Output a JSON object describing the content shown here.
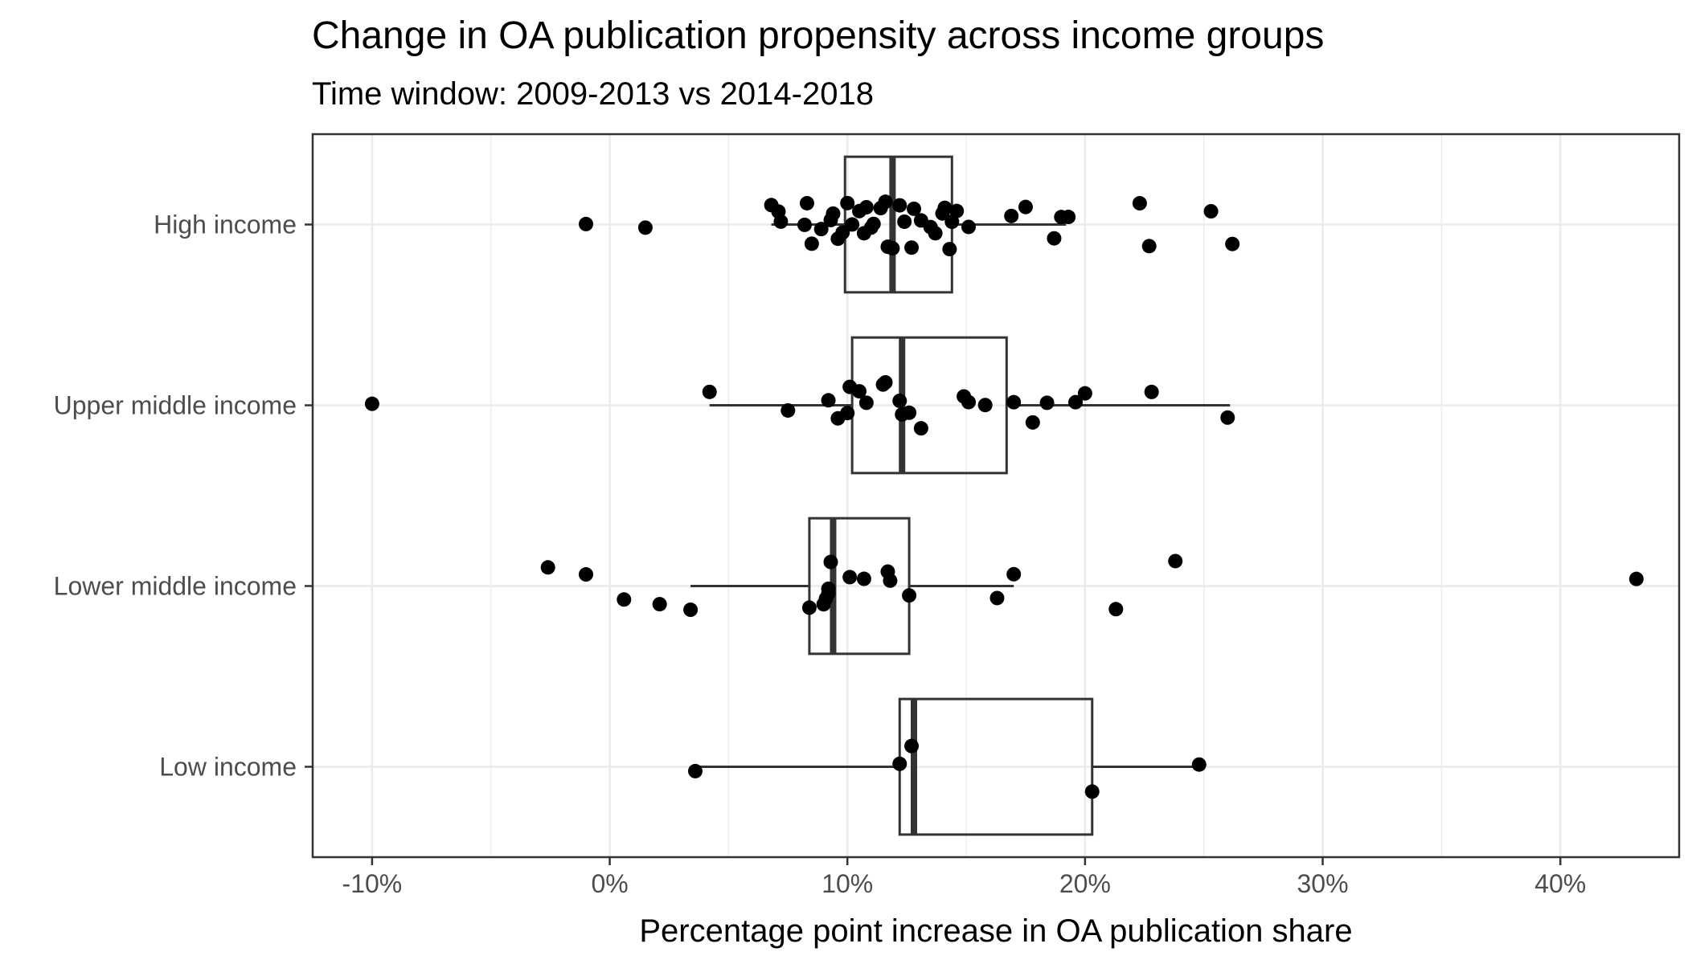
{
  "chart_data": {
    "type": "boxplot",
    "title": "Change in OA publication propensity across income groups",
    "subtitle": "Time window: 2009-2013 vs 2014-2018",
    "xlabel": "Percentage point increase in OA publication share",
    "ylabel": "",
    "xlim": [
      -12.5,
      45.0
    ],
    "x_ticks": [
      -10,
      0,
      10,
      20,
      30,
      40
    ],
    "x_tick_labels": [
      "-10%",
      "0%",
      "10%",
      "20%",
      "30%",
      "40%"
    ],
    "categories": [
      "High income",
      "Upper middle income",
      "Lower middle income",
      "Low income"
    ],
    "grid": true,
    "legend": "none",
    "colors": {
      "points": "#000000",
      "box": "#333333",
      "grid": "#ebebeb",
      "panel_border": "#333333"
    },
    "boxes": [
      {
        "category": "High income",
        "whisker_low": 6.8,
        "q1": 9.9,
        "median": 11.9,
        "q3": 14.4,
        "whisker_high": 19.2
      },
      {
        "category": "Upper middle income",
        "whisker_low": 4.2,
        "q1": 10.2,
        "median": 12.3,
        "q3": 16.7,
        "whisker_high": 26.1
      },
      {
        "category": "Lower middle income",
        "whisker_low": 3.4,
        "q1": 8.4,
        "median": 9.4,
        "q3": 12.6,
        "whisker_high": 17.0
      },
      {
        "category": "Low income",
        "whisker_low": 3.6,
        "q1": 12.2,
        "median": 12.8,
        "q3": 20.3,
        "whisker_high": 24.9
      }
    ],
    "points": [
      {
        "category": "High income",
        "values": [
          -1.0,
          1.5,
          6.8,
          7.1,
          7.2,
          8.2,
          8.3,
          8.5,
          8.9,
          9.3,
          9.4,
          9.6,
          9.8,
          10.0,
          10.2,
          10.5,
          10.7,
          10.8,
          11.0,
          11.1,
          11.4,
          11.6,
          11.7,
          11.9,
          12.2,
          12.4,
          12.7,
          12.8,
          13.1,
          13.5,
          13.7,
          14.0,
          14.1,
          14.3,
          14.4,
          14.6,
          15.1,
          16.9,
          17.5,
          18.7,
          19.0,
          19.3,
          22.3,
          22.7,
          25.3,
          26.2
        ]
      },
      {
        "category": "Upper middle income",
        "values": [
          -10.0,
          4.2,
          7.5,
          9.2,
          9.6,
          10.0,
          10.1,
          10.5,
          10.8,
          11.5,
          11.6,
          12.2,
          12.3,
          12.6,
          13.1,
          14.9,
          15.1,
          15.8,
          17.0,
          17.8,
          18.4,
          19.6,
          20.0,
          22.8,
          26.0
        ]
      },
      {
        "category": "Lower middle income",
        "values": [
          -2.6,
          -1.0,
          0.6,
          2.1,
          3.4,
          8.4,
          9.0,
          9.1,
          9.2,
          9.2,
          9.3,
          10.1,
          10.7,
          11.7,
          11.8,
          12.6,
          16.3,
          17.0,
          21.3,
          23.8,
          43.2
        ]
      },
      {
        "category": "Low income",
        "values": [
          3.6,
          12.2,
          12.7,
          20.3,
          24.8
        ]
      }
    ]
  }
}
